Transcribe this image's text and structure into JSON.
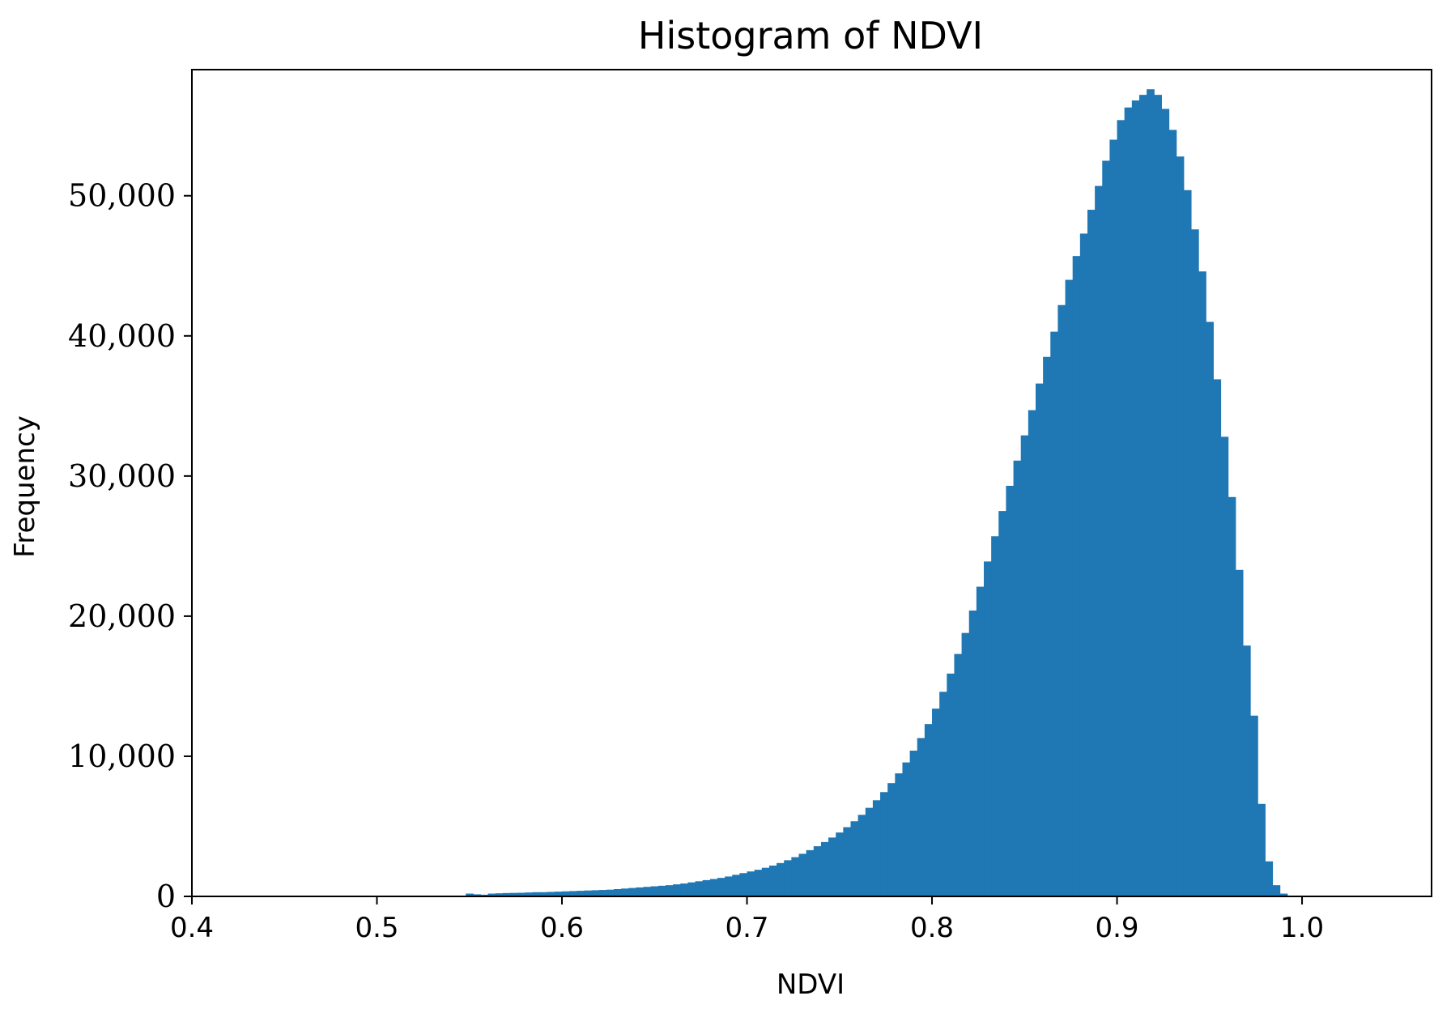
{
  "chart_data": {
    "type": "bar",
    "title": "Histogram of NDVI",
    "xlabel": "NDVI",
    "ylabel": "Frequency",
    "xlim": [
      0.4,
      1.07
    ],
    "ylim": [
      0,
      59000
    ],
    "xticks": [
      0.4,
      0.5,
      0.6,
      0.7,
      0.8,
      0.9,
      1.0
    ],
    "xtick_labels": [
      "0.4",
      "0.5",
      "0.6",
      "0.7",
      "0.8",
      "0.9",
      "1.0"
    ],
    "yticks": [
      0,
      10000,
      20000,
      30000,
      40000,
      50000
    ],
    "ytick_labels": [
      "0",
      "10,000",
      "20,000",
      "30,000",
      "40,000",
      "50,000"
    ],
    "grid": false,
    "bar_color": "#1f77b4",
    "bin_width": 0.004,
    "bin_start": 0.548,
    "values": [
      200,
      150,
      120,
      200,
      220,
      240,
      250,
      260,
      280,
      300,
      300,
      320,
      340,
      360,
      380,
      400,
      420,
      440,
      460,
      480,
      520,
      560,
      600,
      640,
      680,
      720,
      760,
      800,
      860,
      920,
      1000,
      1080,
      1160,
      1240,
      1320,
      1420,
      1540,
      1660,
      1780,
      1900,
      2040,
      2200,
      2380,
      2580,
      2800,
      3040,
      3300,
      3580,
      3880,
      4200,
      4560,
      4940,
      5360,
      5820,
      6320,
      6860,
      7440,
      8080,
      8780,
      9560,
      10400,
      11300,
      12300,
      13400,
      14600,
      15900,
      17300,
      18800,
      20400,
      22100,
      23900,
      25700,
      27500,
      29300,
      31100,
      32900,
      34700,
      36600,
      38500,
      40300,
      42200,
      44000,
      45700,
      47300,
      49000,
      50700,
      52500,
      54000,
      55400,
      56300,
      56800,
      57200,
      57600,
      57200,
      56200,
      54700,
      52800,
      50400,
      47600,
      44600,
      41000,
      36900,
      32800,
      28500,
      23300,
      17900,
      12900,
      6600,
      2500,
      800,
      200,
      50
    ]
  }
}
